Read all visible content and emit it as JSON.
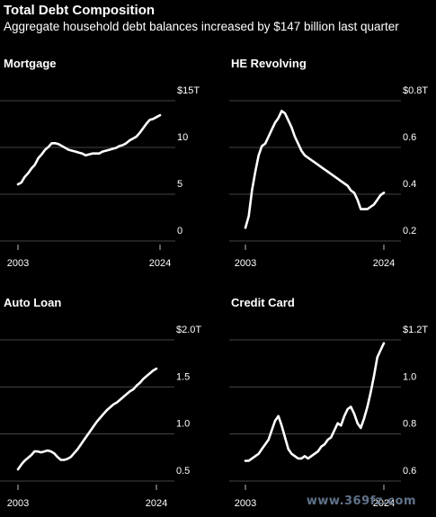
{
  "header": {
    "title": "Total Debt Composition",
    "subtitle": "Aggregate household debt balances increased by $147 billion last quarter"
  },
  "watermark": "www.369fz.com",
  "colors": {
    "background": "#000000",
    "line": "#ffffff",
    "grid": "#444444"
  },
  "chart_data": [
    {
      "type": "line",
      "title": "Mortgage",
      "ylim": [
        0,
        15
      ],
      "yticks": [
        {
          "value": 0,
          "label": "0"
        },
        {
          "value": 5,
          "label": "5"
        },
        {
          "value": 10,
          "label": "10"
        },
        {
          "value": 15,
          "label": "$15T"
        }
      ],
      "xlim": [
        2003,
        2024
      ],
      "xticks": [
        {
          "value": 2003,
          "label": "2003"
        },
        {
          "value": 2024,
          "label": "2024"
        }
      ],
      "x": [
        2003.0,
        2003.5,
        2004.0,
        2004.5,
        2005.0,
        2005.5,
        2006.0,
        2006.5,
        2007.0,
        2007.5,
        2008.0,
        2008.5,
        2009.0,
        2009.5,
        2010.0,
        2010.5,
        2011.0,
        2011.5,
        2012.0,
        2012.5,
        2013.0,
        2013.5,
        2014.0,
        2014.5,
        2015.0,
        2015.5,
        2016.0,
        2016.5,
        2017.0,
        2017.5,
        2018.0,
        2018.5,
        2019.0,
        2019.5,
        2020.0,
        2020.5,
        2021.0,
        2021.5,
        2022.0,
        2022.5,
        2023.0,
        2023.5,
        2024.0
      ],
      "values": [
        4.9,
        5.1,
        5.7,
        6.1,
        6.6,
        7.0,
        7.7,
        8.1,
        8.6,
        8.9,
        9.3,
        9.3,
        9.2,
        9.0,
        8.8,
        8.6,
        8.5,
        8.4,
        8.3,
        8.2,
        8.0,
        8.1,
        8.2,
        8.2,
        8.2,
        8.4,
        8.5,
        8.6,
        8.7,
        8.8,
        9.0,
        9.1,
        9.3,
        9.6,
        9.8,
        10.0,
        10.4,
        10.9,
        11.4,
        11.8,
        11.9,
        12.1,
        12.3
      ]
    },
    {
      "type": "line",
      "title": "HE Revolving",
      "ylim": [
        0.2,
        0.8
      ],
      "yticks": [
        {
          "value": 0.2,
          "label": "0.2"
        },
        {
          "value": 0.4,
          "label": "0.4"
        },
        {
          "value": 0.6,
          "label": "0.6"
        },
        {
          "value": 0.8,
          "label": "$0.8T"
        }
      ],
      "xlim": [
        2003,
        2024
      ],
      "xticks": [
        {
          "value": 2003,
          "label": "2003"
        },
        {
          "value": 2024,
          "label": "2024"
        }
      ],
      "x": [
        2003.0,
        2003.5,
        2004.0,
        2004.5,
        2005.0,
        2005.5,
        2006.0,
        2006.5,
        2007.0,
        2007.5,
        2008.0,
        2008.5,
        2009.0,
        2009.5,
        2010.0,
        2010.5,
        2011.0,
        2011.5,
        2012.0,
        2012.5,
        2013.0,
        2013.5,
        2014.0,
        2014.5,
        2015.0,
        2015.5,
        2016.0,
        2016.5,
        2017.0,
        2017.5,
        2018.0,
        2018.5,
        2019.0,
        2019.5,
        2020.0,
        2020.5,
        2021.0,
        2021.5,
        2022.0,
        2022.5,
        2023.0,
        2023.5,
        2024.0
      ],
      "values": [
        0.21,
        0.26,
        0.37,
        0.45,
        0.52,
        0.56,
        0.57,
        0.6,
        0.63,
        0.66,
        0.68,
        0.71,
        0.7,
        0.67,
        0.64,
        0.6,
        0.57,
        0.54,
        0.52,
        0.51,
        0.5,
        0.49,
        0.48,
        0.47,
        0.46,
        0.45,
        0.44,
        0.43,
        0.42,
        0.41,
        0.4,
        0.39,
        0.37,
        0.36,
        0.33,
        0.29,
        0.29,
        0.29,
        0.3,
        0.31,
        0.33,
        0.35,
        0.36
      ]
    },
    {
      "type": "line",
      "title": "Auto Loan",
      "ylim": [
        0.5,
        2.0
      ],
      "yticks": [
        {
          "value": 0.5,
          "label": "0.5"
        },
        {
          "value": 1.0,
          "label": "1.0"
        },
        {
          "value": 1.5,
          "label": "1.5"
        },
        {
          "value": 2.0,
          "label": "$2.0T"
        }
      ],
      "xlim": [
        2003,
        2024
      ],
      "xticks": [
        {
          "value": 2003,
          "label": "2003"
        },
        {
          "value": 2024,
          "label": "2024"
        }
      ],
      "x": [
        2003.0,
        2003.5,
        2004.0,
        2004.5,
        2005.0,
        2005.5,
        2006.0,
        2006.5,
        2007.0,
        2007.5,
        2008.0,
        2008.5,
        2009.0,
        2009.5,
        2010.0,
        2010.5,
        2011.0,
        2011.5,
        2012.0,
        2012.5,
        2013.0,
        2013.5,
        2014.0,
        2014.5,
        2015.0,
        2015.5,
        2016.0,
        2016.5,
        2017.0,
        2017.5,
        2018.0,
        2018.5,
        2019.0,
        2019.5,
        2020.0,
        2020.5,
        2021.0,
        2021.5,
        2022.0,
        2022.5,
        2023.0,
        2023.5,
        2024.0
      ],
      "values": [
        0.51,
        0.56,
        0.6,
        0.63,
        0.66,
        0.7,
        0.7,
        0.69,
        0.7,
        0.71,
        0.7,
        0.68,
        0.64,
        0.61,
        0.61,
        0.62,
        0.64,
        0.68,
        0.72,
        0.77,
        0.82,
        0.87,
        0.92,
        0.97,
        1.02,
        1.06,
        1.1,
        1.14,
        1.17,
        1.2,
        1.22,
        1.25,
        1.28,
        1.31,
        1.34,
        1.36,
        1.4,
        1.43,
        1.47,
        1.5,
        1.53,
        1.56,
        1.58
      ]
    },
    {
      "type": "line",
      "title": "Credit Card",
      "ylim": [
        0.6,
        1.2
      ],
      "yticks": [
        {
          "value": 0.6,
          "label": "0.6"
        },
        {
          "value": 0.8,
          "label": "0.8"
        },
        {
          "value": 1.0,
          "label": "1.0"
        },
        {
          "value": 1.2,
          "label": "$1.2T"
        }
      ],
      "xlim": [
        2003,
        2024
      ],
      "xticks": [
        {
          "value": 2003,
          "label": "2003"
        },
        {
          "value": 2024,
          "label": "2024"
        }
      ],
      "x": [
        2003.0,
        2003.5,
        2004.0,
        2004.5,
        2005.0,
        2005.5,
        2006.0,
        2006.5,
        2007.0,
        2007.5,
        2008.0,
        2008.5,
        2009.0,
        2009.5,
        2010.0,
        2010.5,
        2011.0,
        2011.5,
        2012.0,
        2012.5,
        2013.0,
        2013.5,
        2014.0,
        2014.5,
        2015.0,
        2015.5,
        2016.0,
        2016.5,
        2017.0,
        2017.5,
        2018.0,
        2018.5,
        2019.0,
        2019.5,
        2020.0,
        2020.5,
        2021.0,
        2021.5,
        2022.0,
        2022.5,
        2023.0,
        2023.5,
        2024.0
      ],
      "values": [
        0.64,
        0.64,
        0.65,
        0.66,
        0.67,
        0.69,
        0.71,
        0.73,
        0.77,
        0.81,
        0.83,
        0.79,
        0.74,
        0.69,
        0.67,
        0.66,
        0.65,
        0.65,
        0.66,
        0.65,
        0.66,
        0.67,
        0.68,
        0.7,
        0.71,
        0.73,
        0.74,
        0.77,
        0.8,
        0.79,
        0.83,
        0.86,
        0.87,
        0.84,
        0.8,
        0.78,
        0.82,
        0.87,
        0.93,
        1.0,
        1.08,
        1.11,
        1.14
      ]
    }
  ]
}
